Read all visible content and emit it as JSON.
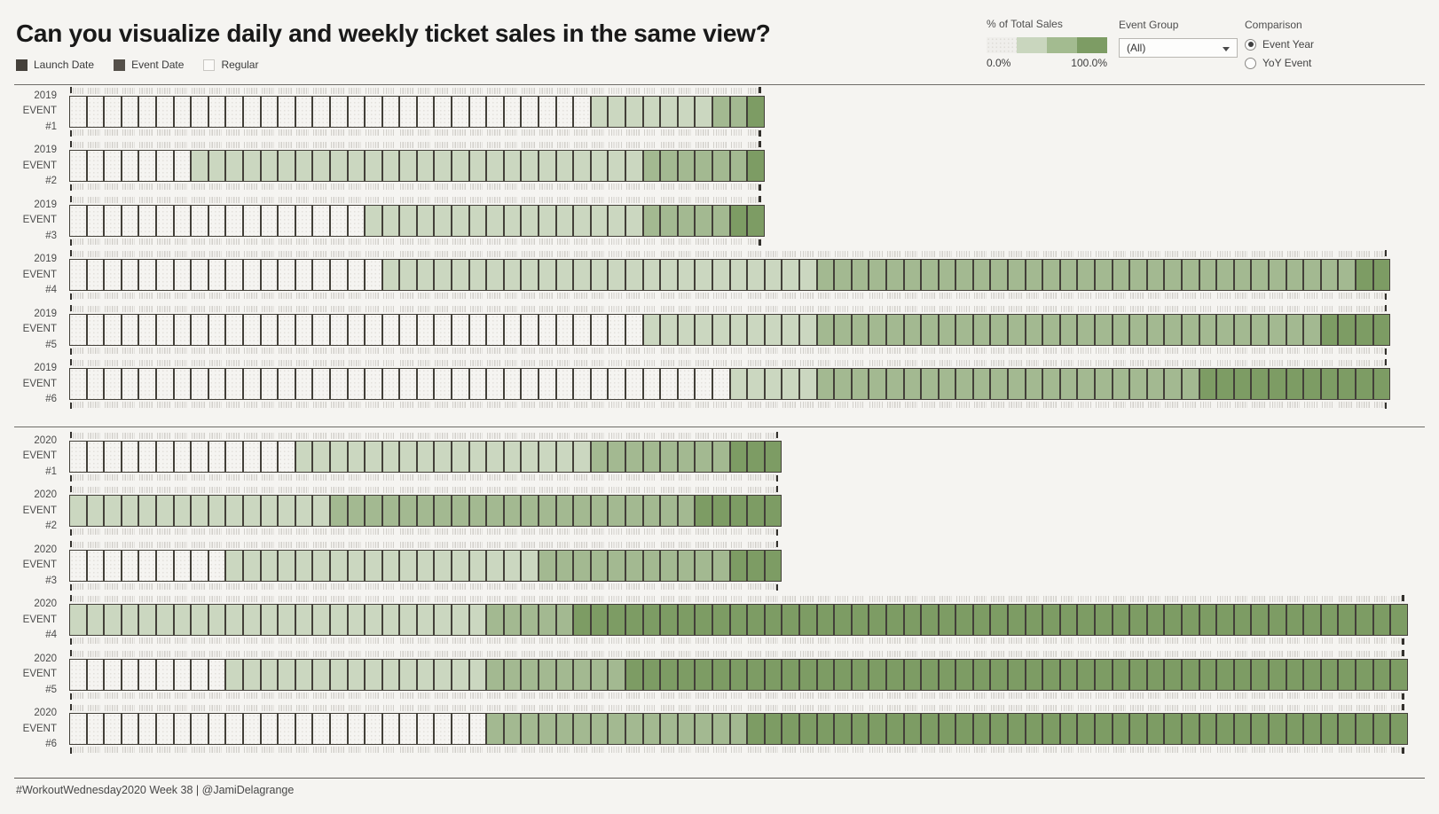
{
  "title": "Can you visualize daily and weekly ticket sales in the same view?",
  "pattern_legend": {
    "items": [
      {
        "label": "Launch Date",
        "swatch": "dark1"
      },
      {
        "label": "Event Date",
        "swatch": "dark2"
      },
      {
        "label": "Regular",
        "swatch": "regular"
      }
    ]
  },
  "controls": {
    "color_legend": {
      "label": "% of Total Sales",
      "min_label": "0.0%",
      "max_label": "100.0%",
      "ramp_colors": [
        "#efeeeb",
        "#c9d6be",
        "#a3bb90",
        "#7d9c64"
      ]
    },
    "event_group": {
      "label": "Event Group",
      "value": "(All)"
    },
    "comparison": {
      "label": "Comparison",
      "options": [
        {
          "label": "Event Year",
          "selected": true
        },
        {
          "label": "YoY Event",
          "selected": false
        }
      ]
    }
  },
  "footer": "#WorkoutWednesday2020 Week 38 | @JamiDelagrange",
  "chart_data": {
    "type": "heatmap",
    "description": "Weekly ticket sales leading up to each event; one cell per week, daily tick marks above/below each week, shaded by % of total sales from 0% (dotted regular) to 100% (dark green). Dark tick at bar start = launch date, dark tick at bar end = event date.",
    "x_unit": "week",
    "color_scale": {
      "label": "% of Total Sales",
      "range": [
        "0.0%",
        "100.0%"
      ],
      "levels": {
        "0": "regular / minimal sales (dotted)",
        "1": "low",
        "2": "medium",
        "3": "high"
      },
      "level_colors": [
        "#f5f4f1",
        "#cbd7c0",
        "#a3b991",
        "#7d9c64"
      ]
    },
    "rows": [
      {
        "year": "2019",
        "event": "EVENT",
        "number": "#1",
        "segments": [
          [
            0,
            30
          ],
          [
            1,
            7
          ],
          [
            2,
            2
          ],
          [
            3,
            1
          ]
        ]
      },
      {
        "year": "2019",
        "event": "EVENT",
        "number": "#2",
        "segments": [
          [
            0,
            7
          ],
          [
            1,
            26
          ],
          [
            2,
            6
          ],
          [
            3,
            1
          ]
        ]
      },
      {
        "year": "2019",
        "event": "EVENT",
        "number": "#3",
        "segments": [
          [
            0,
            17
          ],
          [
            1,
            16
          ],
          [
            2,
            5
          ],
          [
            3,
            2
          ]
        ]
      },
      {
        "year": "2019",
        "event": "EVENT",
        "number": "#4",
        "segments": [
          [
            0,
            18
          ],
          [
            1,
            25
          ],
          [
            2,
            31
          ],
          [
            3,
            2
          ]
        ]
      },
      {
        "year": "2019",
        "event": "EVENT",
        "number": "#5",
        "segments": [
          [
            0,
            33
          ],
          [
            1,
            10
          ],
          [
            2,
            29
          ],
          [
            3,
            4
          ]
        ]
      },
      {
        "year": "2019",
        "event": "EVENT",
        "number": "#6",
        "segments": [
          [
            0,
            38
          ],
          [
            1,
            5
          ],
          [
            2,
            22
          ],
          [
            3,
            11
          ]
        ]
      },
      {
        "year": "2020",
        "event": "EVENT",
        "number": "#1",
        "segments": [
          [
            0,
            13
          ],
          [
            1,
            17
          ],
          [
            2,
            8
          ],
          [
            3,
            3
          ]
        ]
      },
      {
        "year": "2020",
        "event": "EVENT",
        "number": "#2",
        "segments": [
          [
            1,
            15
          ],
          [
            2,
            21
          ],
          [
            3,
            5
          ]
        ]
      },
      {
        "year": "2020",
        "event": "EVENT",
        "number": "#3",
        "segments": [
          [
            0,
            9
          ],
          [
            1,
            18
          ],
          [
            2,
            11
          ],
          [
            3,
            3
          ]
        ]
      },
      {
        "year": "2020",
        "event": "EVENT",
        "number": "#4",
        "segments": [
          [
            1,
            24
          ],
          [
            2,
            5
          ],
          [
            3,
            48
          ]
        ]
      },
      {
        "year": "2020",
        "event": "EVENT",
        "number": "#5",
        "segments": [
          [
            0,
            9
          ],
          [
            1,
            15
          ],
          [
            2,
            8
          ],
          [
            3,
            45
          ]
        ]
      },
      {
        "year": "2020",
        "event": "EVENT",
        "number": "#6",
        "segments": [
          [
            0,
            24
          ],
          [
            2,
            15
          ],
          [
            3,
            38
          ]
        ]
      }
    ]
  }
}
